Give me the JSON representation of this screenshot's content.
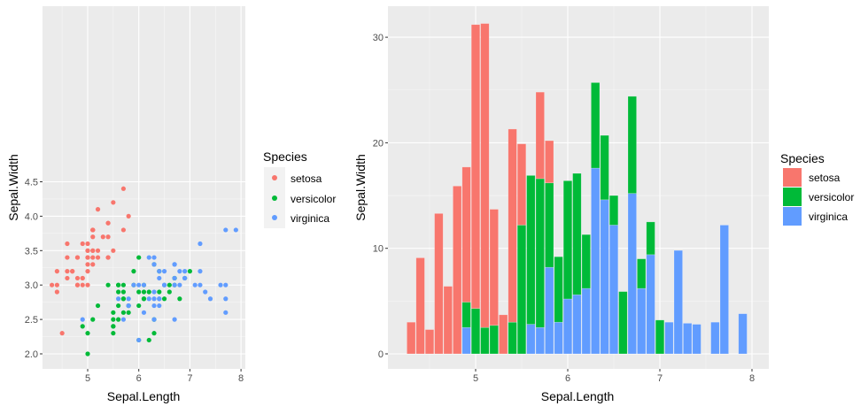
{
  "species_colors": {
    "setosa": "#F8766D",
    "versicolor": "#00BA38",
    "virginica": "#619CFF"
  },
  "observations": {
    "setosa": {
      "x": [
        5.1,
        4.9,
        4.7,
        4.6,
        5.0,
        5.4,
        4.6,
        5.0,
        4.4,
        4.9,
        5.4,
        4.8,
        4.8,
        4.3,
        5.8,
        5.7,
        5.4,
        5.1,
        5.7,
        5.1,
        5.4,
        5.1,
        4.6,
        5.1,
        4.8,
        5.0,
        5.0,
        5.2,
        5.2,
        4.7,
        4.8,
        5.4,
        5.2,
        5.5,
        4.9,
        5.0,
        5.5,
        4.9,
        4.4,
        5.1,
        5.0,
        4.5,
        4.4,
        5.0,
        5.1,
        4.8,
        5.1,
        4.6,
        5.3,
        5.0
      ],
      "y": [
        3.5,
        3.0,
        3.2,
        3.1,
        3.6,
        3.9,
        3.4,
        3.4,
        2.9,
        3.1,
        3.7,
        3.4,
        3.0,
        3.0,
        4.0,
        4.4,
        3.9,
        3.5,
        3.8,
        3.8,
        3.4,
        3.7,
        3.6,
        3.3,
        3.4,
        3.0,
        3.4,
        3.5,
        3.4,
        3.2,
        3.1,
        3.4,
        4.1,
        4.2,
        3.1,
        3.2,
        3.5,
        3.6,
        3.0,
        3.4,
        3.5,
        2.3,
        3.2,
        3.5,
        3.8,
        3.0,
        3.8,
        3.2,
        3.7,
        3.3
      ]
    },
    "versicolor": {
      "x": [
        7.0,
        6.4,
        6.9,
        5.5,
        6.5,
        5.7,
        6.3,
        4.9,
        6.6,
        5.2,
        5.0,
        5.9,
        6.0,
        6.1,
        5.6,
        6.7,
        5.6,
        5.8,
        6.2,
        5.6,
        5.9,
        6.1,
        6.3,
        6.1,
        6.4,
        6.6,
        6.8,
        6.7,
        6.0,
        5.7,
        5.5,
        5.5,
        5.8,
        6.0,
        5.4,
        6.0,
        6.7,
        6.3,
        5.6,
        5.5,
        5.5,
        6.1,
        5.8,
        5.0,
        5.6,
        5.7,
        5.7,
        6.2,
        5.1,
        5.7
      ],
      "y": [
        3.2,
        3.2,
        3.1,
        2.3,
        2.8,
        2.8,
        3.3,
        2.4,
        2.9,
        2.7,
        2.0,
        3.0,
        2.2,
        2.9,
        2.9,
        3.1,
        3.0,
        2.7,
        2.2,
        2.5,
        3.2,
        2.8,
        2.5,
        2.8,
        2.9,
        3.0,
        2.8,
        3.0,
        2.9,
        2.6,
        2.4,
        2.4,
        2.7,
        2.7,
        3.0,
        3.4,
        3.1,
        2.3,
        3.0,
        2.5,
        2.6,
        3.0,
        2.6,
        2.3,
        2.7,
        3.0,
        2.9,
        2.9,
        2.5,
        2.8
      ]
    },
    "virginica": {
      "x": [
        6.3,
        5.8,
        7.1,
        6.3,
        6.5,
        7.6,
        4.9,
        7.3,
        6.7,
        7.2,
        6.5,
        6.4,
        6.8,
        5.7,
        5.8,
        6.4,
        6.5,
        7.7,
        7.7,
        6.0,
        6.9,
        5.6,
        7.7,
        6.3,
        6.7,
        7.2,
        6.2,
        6.1,
        6.4,
        7.2,
        7.4,
        7.9,
        6.4,
        6.3,
        6.1,
        7.7,
        6.3,
        6.4,
        6.0,
        6.9,
        6.7,
        6.9,
        5.8,
        6.8,
        6.7,
        6.7,
        6.3,
        6.5,
        6.2,
        5.9
      ],
      "y": [
        3.3,
        2.7,
        3.0,
        2.9,
        3.0,
        3.0,
        2.5,
        2.9,
        2.5,
        3.6,
        3.2,
        2.7,
        3.0,
        2.5,
        2.8,
        3.2,
        3.0,
        3.8,
        2.6,
        2.2,
        3.2,
        2.8,
        2.8,
        2.7,
        3.3,
        3.2,
        2.8,
        3.0,
        2.8,
        3.0,
        2.8,
        3.8,
        2.8,
        2.8,
        2.6,
        3.0,
        3.4,
        3.1,
        3.0,
        3.1,
        3.1,
        3.1,
        2.7,
        3.2,
        3.3,
        3.0,
        2.5,
        3.0,
        3.4,
        3.0
      ]
    }
  },
  "chart_data": [
    {
      "type": "scatter",
      "xlabel": "Sepal.Length",
      "ylabel": "Sepal.Width",
      "xlim": [
        4.3,
        7.9
      ],
      "ylim": [
        2.0,
        4.4
      ],
      "xticks": [
        "5",
        "6",
        "7",
        "8"
      ],
      "yticks": [
        "2.0",
        "2.5",
        "3.0",
        "3.5",
        "4.0",
        "4.5"
      ],
      "grid": true,
      "legend": {
        "title": "Species",
        "position": "right",
        "entries": [
          "setosa",
          "versicolor",
          "virginica"
        ]
      },
      "series_source": "observations"
    },
    {
      "type": "bar",
      "stacked": true,
      "stat": "sum of Sepal.Width per Sepal.Length",
      "xlabel": "Sepal.Length",
      "ylabel": "Sepal.Width",
      "xticks": [
        "5",
        "6",
        "7",
        "8"
      ],
      "yticks": [
        "0",
        "10",
        "20",
        "30"
      ],
      "grid": true,
      "legend": {
        "title": "Species",
        "position": "right",
        "entries": [
          "setosa",
          "versicolor",
          "virginica"
        ]
      },
      "series_source": "observations"
    }
  ]
}
